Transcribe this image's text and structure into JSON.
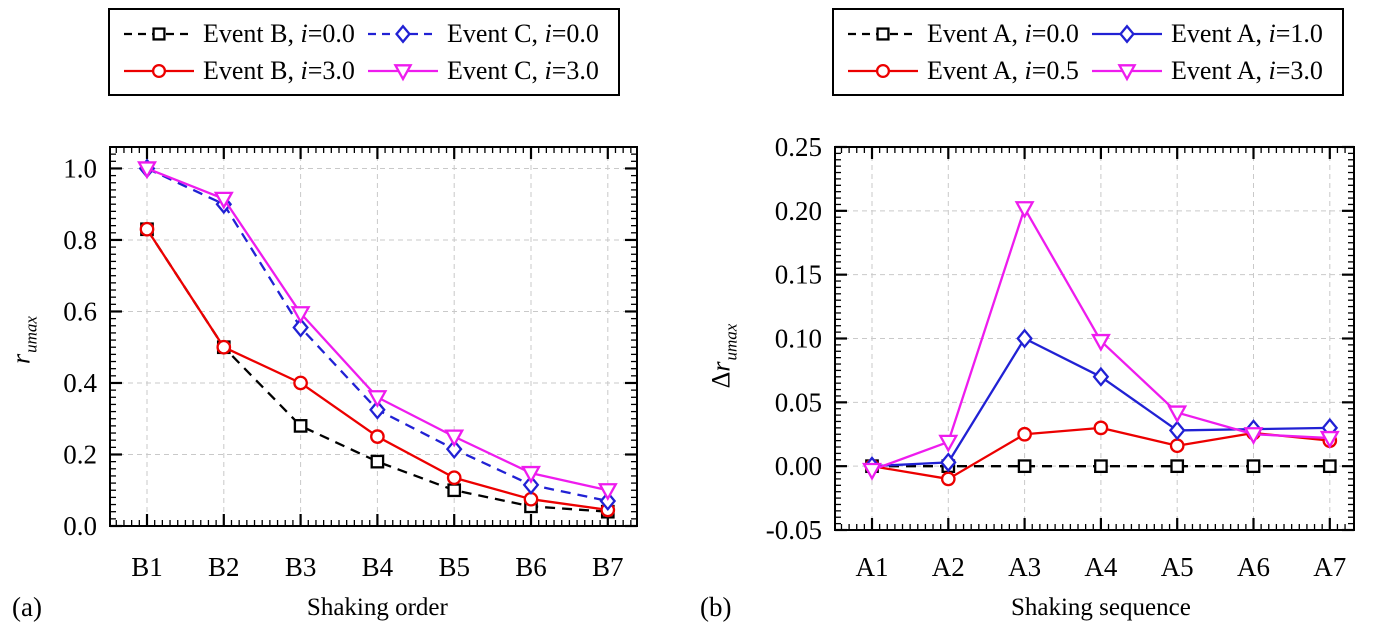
{
  "chart_data": [
    {
      "type": "line",
      "panel_label": "(a)",
      "title": "",
      "xlabel": "Shaking order",
      "ylabel": "r_umax",
      "ylabel_main": "r",
      "ylabel_sub": "umax",
      "categories": [
        "B1",
        "B2",
        "B3",
        "B4",
        "B5",
        "B6",
        "B7"
      ],
      "ylim": [
        0,
        1.06
      ],
      "yticks": [
        {
          "v": 1.0,
          "label": "1.0"
        },
        {
          "v": 0.8,
          "label": "0.8"
        },
        {
          "v": 0.6,
          "label": "0.6"
        },
        {
          "v": 0.4,
          "label": "0.4"
        },
        {
          "v": 0.2,
          "label": "0.2"
        },
        {
          "v": 0.0,
          "label": "0.0"
        }
      ],
      "y_minor_step": 0.02,
      "x_minor_divisions": 10,
      "grid": "dashed",
      "legend_position": "top",
      "series": [
        {
          "label": "Event B, i=0.0",
          "color": "#000000",
          "line": "dashed",
          "marker": "square",
          "values": [
            0.83,
            0.5,
            0.28,
            0.18,
            0.1,
            0.055,
            0.04
          ]
        },
        {
          "label": "Event B, i=3.0",
          "color": "#ec0000",
          "line": "solid",
          "marker": "circle",
          "values": [
            0.83,
            0.5,
            0.4,
            0.25,
            0.135,
            0.075,
            0.045
          ]
        },
        {
          "label": "Event C, i=0.0",
          "color": "#2121d4",
          "line": "dashed",
          "marker": "diamond",
          "values": [
            1.0,
            0.9,
            0.555,
            0.325,
            0.215,
            0.115,
            0.07
          ]
        },
        {
          "label": "Event C, i=3.0",
          "color": "#ee1cee",
          "line": "solid",
          "marker": "triangle-down",
          "values": [
            1.0,
            0.915,
            0.595,
            0.36,
            0.25,
            0.148,
            0.1
          ]
        }
      ]
    },
    {
      "type": "line",
      "panel_label": "(b)",
      "title": "",
      "xlabel": "Shaking sequence",
      "ylabel": "Δr_umax",
      "ylabel_main": "Δr",
      "ylabel_sub": "umax",
      "categories": [
        "A1",
        "A2",
        "A3",
        "A4",
        "A5",
        "A6",
        "A7"
      ],
      "ylim": [
        -0.05,
        0.25
      ],
      "yticks": [
        {
          "v": 0.25,
          "label": "0.25"
        },
        {
          "v": 0.2,
          "label": "0.20"
        },
        {
          "v": 0.15,
          "label": "0.15"
        },
        {
          "v": 0.1,
          "label": "0.10"
        },
        {
          "v": 0.05,
          "label": "0.05"
        },
        {
          "v": 0.0,
          "label": "0.00"
        },
        {
          "v": -0.05,
          "label": "-0.05"
        }
      ],
      "y_minor_step": 0.005,
      "x_minor_divisions": 10,
      "grid": "dashed",
      "legend_position": "top",
      "series": [
        {
          "label": "Event A, i=0.0",
          "color": "#000000",
          "line": "dashed",
          "marker": "square",
          "values": [
            0.0,
            0.0,
            0.0,
            0.0,
            0.0,
            0.0,
            0.0
          ]
        },
        {
          "label": "Event A, i=0.5",
          "color": "#ec0000",
          "line": "solid",
          "marker": "circle",
          "values": [
            0.0,
            -0.01,
            0.025,
            0.03,
            0.016,
            0.026,
            0.02
          ]
        },
        {
          "label": "Event A, i=1.0",
          "color": "#2121d4",
          "line": "solid",
          "marker": "diamond",
          "values": [
            0.0,
            0.003,
            0.1,
            0.07,
            0.028,
            0.029,
            0.03
          ]
        },
        {
          "label": "Event A, i=3.0",
          "color": "#ee1cee",
          "line": "solid",
          "marker": "triangle-down",
          "values": [
            -0.003,
            0.019,
            0.202,
            0.098,
            0.042,
            0.025,
            0.022
          ]
        }
      ]
    }
  ],
  "style": {
    "grid_color": "#c9c9c9",
    "frame_color": "#000000",
    "marker_fill": "#ffffff"
  }
}
